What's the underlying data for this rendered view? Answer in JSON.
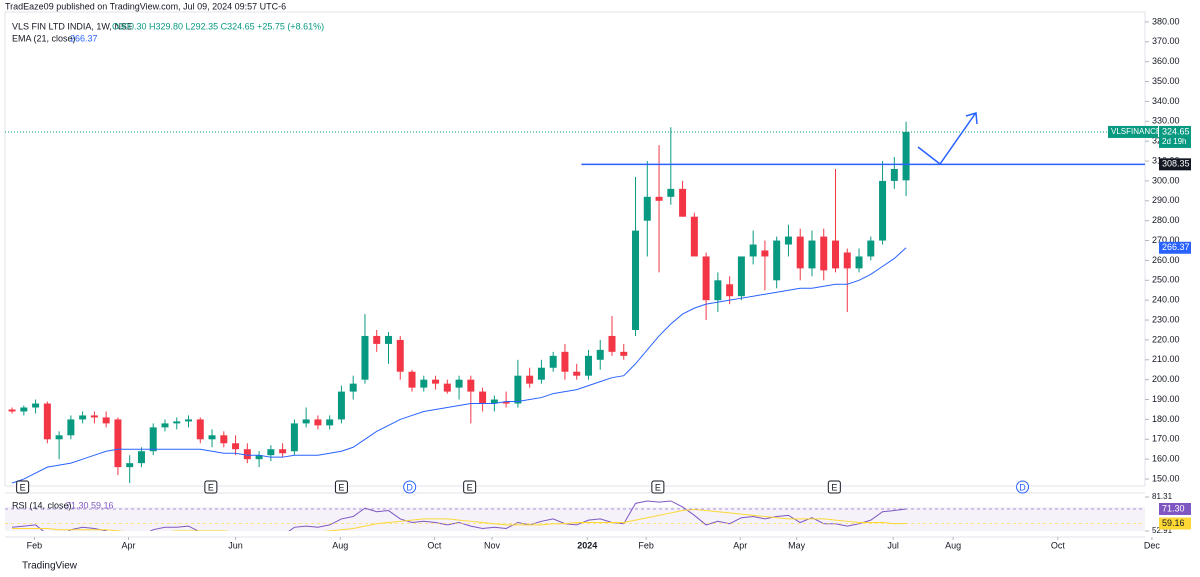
{
  "chart_data": {
    "type": "candlestick",
    "publisher": "TradEaze09 published on TradingView.com, Jul 09, 2024 09:57 UTC-6",
    "symbol": "VLS FIN LTD INDIA, 1W, NSE",
    "ohlc_legend": "O300.30 H329.80 L292.35 C324.65 +25.75 (+8.61%)",
    "ema_name": "EMA (21, close)",
    "ema_value": "266.37",
    "rsi_name": "RSI (14, close)",
    "rsi_legend": "71.30 59.16",
    "ticker": "VLSFINANCE",
    "last_price": "324.65",
    "countdown": "2d 19h",
    "footer": "TradingView",
    "up_color": "#089981",
    "down_color": "#f23645",
    "ema_color": "#2962ff",
    "rsi_color": "#7e57c2",
    "rsi_ma_color": "#fdd835",
    "ohlc": [
      [
        185,
        186,
        183,
        184
      ],
      [
        184,
        187,
        182,
        186
      ],
      [
        186,
        190,
        183,
        188
      ],
      [
        188,
        189,
        168,
        170
      ],
      [
        170,
        174,
        160,
        172
      ],
      [
        172,
        182,
        170,
        180
      ],
      [
        180,
        184,
        178,
        182
      ],
      [
        182,
        184,
        178,
        181
      ],
      [
        181,
        184,
        176,
        178
      ],
      [
        180,
        181,
        152,
        156
      ],
      [
        156,
        162,
        148,
        158
      ],
      [
        158,
        166,
        156,
        164
      ],
      [
        164,
        178,
        162,
        176
      ],
      [
        176,
        180,
        174,
        178
      ],
      [
        178,
        181,
        175,
        179
      ],
      [
        179,
        182,
        176,
        180
      ],
      [
        180,
        181,
        168,
        170
      ],
      [
        170,
        175,
        166,
        172
      ],
      [
        172,
        174,
        166,
        168
      ],
      [
        168,
        172,
        162,
        165
      ],
      [
        165,
        168,
        158,
        160
      ],
      [
        160,
        164,
        156,
        162
      ],
      [
        162,
        167,
        159,
        165
      ],
      [
        165,
        168,
        161,
        163
      ],
      [
        164,
        180,
        162,
        178
      ],
      [
        178,
        186,
        176,
        180
      ],
      [
        180,
        182,
        175,
        177
      ],
      [
        177,
        182,
        175,
        180
      ],
      [
        180,
        197,
        178,
        194
      ],
      [
        194,
        202,
        190,
        198
      ],
      [
        200,
        233,
        198,
        222
      ],
      [
        222,
        225,
        214,
        218
      ],
      [
        218,
        224,
        208,
        222
      ],
      [
        220,
        222,
        200,
        204
      ],
      [
        204,
        205,
        194,
        196
      ],
      [
        196,
        202,
        194,
        200
      ],
      [
        200,
        202,
        195,
        198
      ],
      [
        198,
        200,
        193,
        194
      ],
      [
        196,
        202,
        190,
        200
      ],
      [
        200,
        202,
        178,
        194
      ],
      [
        194,
        196,
        184,
        188
      ],
      [
        188,
        192,
        184,
        190
      ],
      [
        189,
        194,
        186,
        188
      ],
      [
        188,
        210,
        186,
        202
      ],
      [
        202,
        206,
        196,
        198
      ],
      [
        200,
        210,
        198,
        206
      ],
      [
        206,
        214,
        204,
        212
      ],
      [
        214,
        218,
        200,
        204
      ],
      [
        204,
        208,
        200,
        202
      ],
      [
        202,
        215,
        200,
        212
      ],
      [
        210,
        220,
        205,
        215
      ],
      [
        222,
        232,
        212,
        214
      ],
      [
        214,
        218,
        210,
        212
      ],
      [
        225,
        302,
        222,
        275
      ],
      [
        280,
        310,
        262,
        292
      ],
      [
        292,
        318,
        254,
        290
      ],
      [
        292,
        327,
        288,
        296
      ],
      [
        296,
        300,
        282,
        282
      ],
      [
        282,
        284,
        262,
        262
      ],
      [
        262,
        264,
        230,
        240
      ],
      [
        240,
        254,
        234,
        250
      ],
      [
        248,
        252,
        238,
        242
      ],
      [
        242,
        262,
        240,
        262
      ],
      [
        262,
        275,
        258,
        268
      ],
      [
        265,
        270,
        245,
        262
      ],
      [
        250,
        272,
        246,
        270
      ],
      [
        268,
        278,
        262,
        272
      ],
      [
        272,
        276,
        250,
        256
      ],
      [
        256,
        275,
        252,
        270
      ],
      [
        272,
        276,
        250,
        255
      ],
      [
        270,
        306,
        254,
        256
      ],
      [
        264,
        266,
        234,
        256
      ],
      [
        256,
        266,
        254,
        262
      ],
      [
        262,
        272,
        260,
        270
      ],
      [
        270,
        310,
        268,
        300
      ],
      [
        300,
        312,
        296,
        306
      ],
      [
        300.3,
        329.8,
        292.35,
        324.65
      ]
    ],
    "ema": [
      148,
      150,
      153,
      156,
      157,
      158,
      160,
      162,
      164,
      165,
      165,
      165,
      165,
      165,
      165,
      165,
      165,
      164,
      163,
      163,
      162,
      162,
      161,
      161,
      162,
      162,
      162,
      163,
      164,
      166,
      170,
      174,
      177,
      180,
      182,
      184,
      185,
      186,
      187,
      188,
      188,
      188,
      189,
      189,
      190,
      191,
      193,
      194,
      195,
      197,
      199,
      201,
      202,
      208,
      215,
      222,
      228,
      233,
      236,
      238,
      239,
      240,
      241,
      242,
      243,
      244,
      245,
      246,
      246,
      247,
      248,
      248,
      250,
      253,
      257,
      261,
      266.37
    ],
    "rsi": [
      56,
      57,
      58,
      50,
      48,
      54,
      56,
      55,
      53,
      45,
      46,
      49,
      54,
      56,
      56,
      57,
      52,
      53,
      51,
      49,
      47,
      48,
      50,
      49,
      56,
      57,
      56,
      58,
      63,
      65,
      72,
      69,
      70,
      63,
      60,
      61,
      60,
      58,
      60,
      57,
      55,
      56,
      55,
      60,
      58,
      61,
      63,
      59,
      58,
      62,
      63,
      60,
      59,
      76,
      78,
      77,
      78,
      73,
      66,
      58,
      61,
      59,
      64,
      65,
      63,
      65,
      66,
      60,
      64,
      59,
      59,
      57,
      59,
      62,
      69,
      70,
      71.3
    ],
    "rsi_ma": [
      55,
      55,
      55,
      55,
      54,
      54,
      54,
      54,
      54,
      53,
      52,
      52,
      52,
      52,
      53,
      53,
      53,
      53,
      53,
      52,
      52,
      51,
      51,
      51,
      51,
      52,
      52,
      53,
      54,
      55,
      57,
      59,
      60,
      61,
      62,
      63,
      63,
      63,
      62,
      61,
      60,
      59,
      58,
      58,
      58,
      58,
      59,
      59,
      60,
      60,
      60,
      60,
      60,
      62,
      64,
      66,
      68,
      70,
      71,
      70,
      69,
      68,
      67,
      66,
      65,
      64,
      63,
      63,
      63,
      63,
      62,
      61,
      60,
      60,
      60,
      59,
      59.16
    ],
    "xlim": [
      -0.6,
      97.5
    ],
    "ylim": [
      146.5,
      385
    ],
    "yticks": [
      {
        "value": 150,
        "label": "150.00"
      },
      {
        "value": 160,
        "label": "160.00"
      },
      {
        "value": 170,
        "label": "170.00"
      },
      {
        "value": 180,
        "label": "180.00"
      },
      {
        "value": 190,
        "label": "190.00"
      },
      {
        "value": 200,
        "label": "200.00"
      },
      {
        "value": 210,
        "label": "210.00"
      },
      {
        "value": 220,
        "label": "220.00"
      },
      {
        "value": 230,
        "label": "230.00"
      },
      {
        "value": 240,
        "label": "240.00"
      },
      {
        "value": 250,
        "label": "250.00"
      },
      {
        "value": 260,
        "label": "260.00"
      },
      {
        "value": 270,
        "label": "270.00"
      },
      {
        "value": 280,
        "label": "280.00"
      },
      {
        "value": 290,
        "label": "290.00"
      },
      {
        "value": 300,
        "label": "300.00"
      },
      {
        "value": 310,
        "label": "310.00"
      },
      {
        "value": 320,
        "label": "320.00"
      },
      {
        "value": 330,
        "label": "330.00"
      },
      {
        "value": 340,
        "label": "340.00"
      },
      {
        "value": 350,
        "label": "350.00"
      },
      {
        "value": 360,
        "label": "360.00"
      },
      {
        "value": 370,
        "label": "370.00"
      },
      {
        "value": 380,
        "label": "380.00"
      }
    ],
    "xticks": [
      {
        "value": 1.9,
        "label": "Feb"
      },
      {
        "value": 9.9,
        "label": "Apr"
      },
      {
        "value": 19,
        "label": "Jun"
      },
      {
        "value": 27.9,
        "label": "Aug"
      },
      {
        "value": 35.9,
        "label": "Oct"
      },
      {
        "value": 40.8,
        "label": "Nov"
      },
      {
        "value": 48.9,
        "label": "2024"
      },
      {
        "value": 53.9,
        "label": "Feb"
      },
      {
        "value": 61.9,
        "label": "Apr"
      },
      {
        "value": 66.7,
        "label": "May"
      },
      {
        "value": 74.9,
        "label": "Jul"
      },
      {
        "value": 80,
        "label": "Aug"
      },
      {
        "value": 88.9,
        "label": "Oct"
      },
      {
        "value": 96.9,
        "label": "Dec"
      }
    ],
    "rsi_ylim": [
      52.91,
      81.31
    ],
    "rsi_yticks": [
      {
        "value": 81.31,
        "label": "81.31"
      },
      {
        "value": 52.91,
        "label": "52.91"
      }
    ],
    "rsi_last": {
      "value": 71.3,
      "label": "71.30"
    },
    "rsi_ma_last": {
      "value": 59.16,
      "label": "59.16"
    },
    "hline": {
      "value": 308.35,
      "label": "308.35",
      "x": 48.4
    },
    "events": [
      {
        "label": "E",
        "x": 0.9
      },
      {
        "label": "E",
        "x": 16.9
      },
      {
        "label": "E",
        "x": 28
      },
      {
        "label": "D",
        "x": 33.8
      },
      {
        "label": "E",
        "x": 38.9
      },
      {
        "label": "E",
        "x": 54.9
      },
      {
        "label": "E",
        "x": 69.9
      },
      {
        "label": "D",
        "x": 85.9
      }
    ]
  }
}
